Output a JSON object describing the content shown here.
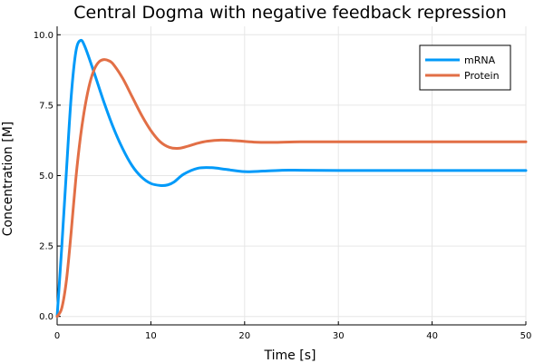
{
  "chart_data": {
    "type": "line",
    "title": "Central Dogma with negative feedback repression",
    "xlabel": "Time [s]",
    "ylabel": "Concentration [M]",
    "xlim": [
      0,
      50
    ],
    "ylim": [
      -0.3,
      10.3
    ],
    "xticks": [
      0,
      10,
      20,
      30,
      40,
      50
    ],
    "xtick_labels": [
      "0",
      "10",
      "20",
      "30",
      "40",
      "50"
    ],
    "yticks": [
      0,
      2.5,
      5,
      7.5,
      10
    ],
    "ytick_labels": [
      "0.0",
      "2.5",
      "5.0",
      "7.5",
      "10.0"
    ],
    "grid": true,
    "legend_position": "top-right",
    "series": [
      {
        "name": "mRNA",
        "color": "#009af9",
        "x": [
          0,
          0.5,
          1,
          1.5,
          2,
          2.5,
          3,
          4,
          5,
          6,
          7,
          8,
          9,
          10,
          11,
          11.8,
          12.5,
          13.5,
          15,
          16.5,
          18,
          20,
          22,
          24,
          26,
          30,
          35,
          40,
          45,
          50
        ],
        "y": [
          0,
          2.5,
          5.2,
          7.8,
          9.4,
          9.8,
          9.55,
          8.6,
          7.6,
          6.7,
          5.95,
          5.35,
          4.95,
          4.72,
          4.65,
          4.67,
          4.78,
          5.05,
          5.26,
          5.28,
          5.22,
          5.14,
          5.16,
          5.19,
          5.19,
          5.18,
          5.18,
          5.18,
          5.18,
          5.18
        ]
      },
      {
        "name": "Protein",
        "color": "#e26f46",
        "x": [
          0,
          0.5,
          1,
          1.5,
          2,
          2.5,
          3,
          3.5,
          4,
          4.5,
          5,
          5.5,
          6,
          7,
          8,
          9,
          10,
          11,
          12,
          13,
          14,
          15,
          16,
          17.5,
          19,
          21,
          23,
          26,
          30,
          35,
          40,
          45,
          50
        ],
        "y": [
          0,
          0.3,
          1.3,
          3.0,
          4.9,
          6.4,
          7.5,
          8.3,
          8.8,
          9.05,
          9.12,
          9.08,
          8.95,
          8.45,
          7.8,
          7.15,
          6.6,
          6.2,
          6.0,
          5.97,
          6.05,
          6.15,
          6.22,
          6.26,
          6.24,
          6.19,
          6.18,
          6.2,
          6.2,
          6.2,
          6.2,
          6.2,
          6.2
        ]
      }
    ]
  }
}
